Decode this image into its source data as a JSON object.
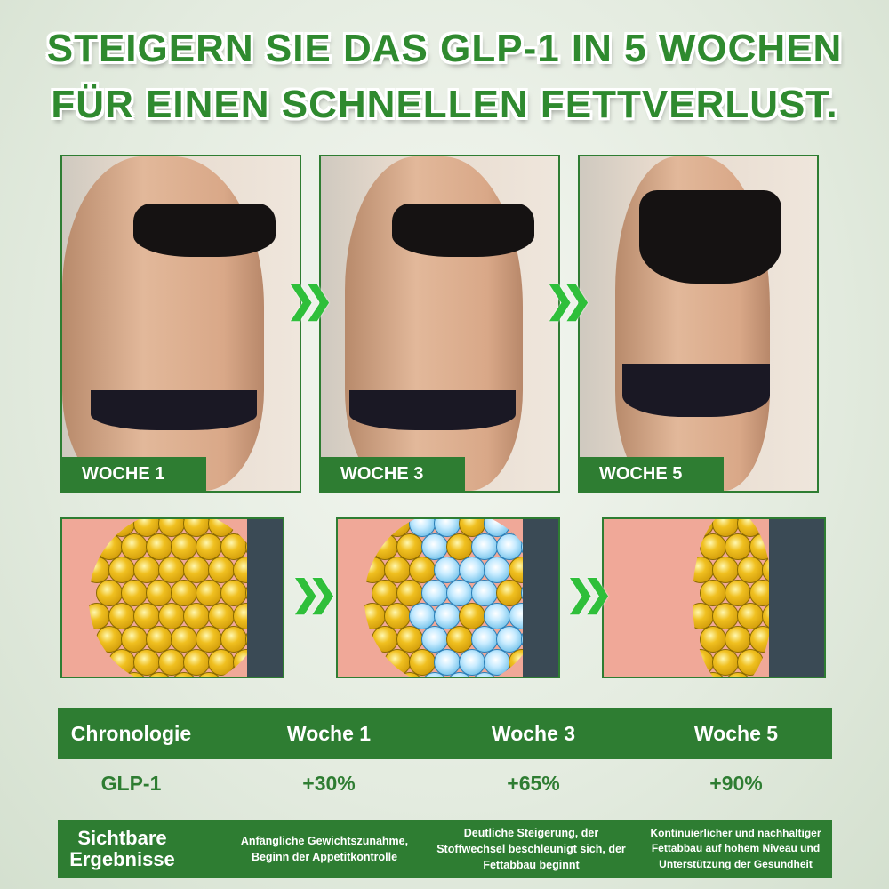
{
  "headline": {
    "line1": "STEIGERN SIE DAS GLP-1 IN 5 WOCHEN",
    "line2": "FÜR EINEN SCHNELLEN FETTVERLUST."
  },
  "photos": [
    {
      "label": "WOCHE 1"
    },
    {
      "label": "WOCHE 3"
    },
    {
      "label": "WOCHE 5"
    }
  ],
  "table": {
    "header": [
      "Chronologie",
      "Woche 1",
      "Woche 3",
      "Woche 5"
    ],
    "glp": [
      "GLP-1",
      "+30%",
      "+65%",
      "+90%"
    ],
    "results_label": "Sichtbare Ergebnisse",
    "results": [
      "Anfängliche Gewichtszunahme, Beginn der Appetitkontrolle",
      "Deutliche Steigerung, der Stoffwechsel beschleunigt sich, der Fettabbau beginnt",
      "Kontinuierlicher und nachhaltiger Fettabbau auf hohem Niveau und Unterstützung der Gesundheit"
    ]
  },
  "colors": {
    "brand_green": "#2e7d32",
    "arrow_green": "#2fbf3a"
  },
  "icons": {
    "arrow": "double-chevron-right-icon"
  }
}
